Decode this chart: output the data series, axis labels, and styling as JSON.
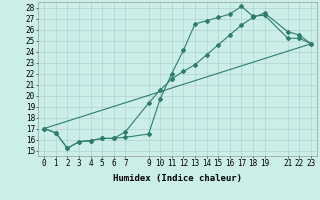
{
  "title": "",
  "xlabel": "Humidex (Indice chaleur)",
  "ylabel": "",
  "bg_color": "#cceee8",
  "line_color": "#2e7d6e",
  "xlim": [
    -0.5,
    23.5
  ],
  "ylim": [
    14.5,
    28.5
  ],
  "xticks": [
    0,
    1,
    2,
    3,
    4,
    5,
    6,
    7,
    9,
    10,
    11,
    12,
    13,
    14,
    15,
    16,
    17,
    18,
    19,
    21,
    22,
    23
  ],
  "yticks": [
    15,
    16,
    17,
    18,
    19,
    20,
    21,
    22,
    23,
    24,
    25,
    26,
    27,
    28
  ],
  "series1_x": [
    0,
    1,
    2,
    3,
    4,
    5,
    6,
    7,
    9,
    10,
    11,
    12,
    13,
    14,
    15,
    16,
    17,
    18,
    19,
    21,
    22,
    23
  ],
  "series1_y": [
    17.0,
    16.6,
    15.2,
    15.8,
    15.9,
    16.1,
    16.1,
    16.2,
    16.5,
    19.7,
    22.0,
    24.1,
    26.5,
    26.8,
    27.1,
    27.4,
    28.1,
    27.2,
    27.3,
    25.2,
    25.2,
    24.7
  ],
  "series2_x": [
    0,
    1,
    2,
    3,
    4,
    5,
    6,
    7,
    9,
    10,
    11,
    12,
    13,
    14,
    15,
    16,
    17,
    18,
    19,
    21,
    22,
    23
  ],
  "series2_y": [
    17.0,
    16.6,
    15.2,
    15.8,
    15.9,
    16.1,
    16.1,
    16.7,
    19.3,
    20.5,
    21.5,
    22.2,
    22.8,
    23.7,
    24.6,
    25.5,
    26.4,
    27.1,
    27.5,
    25.8,
    25.5,
    24.7
  ],
  "series3_x": [
    0,
    23
  ],
  "series3_y": [
    17.0,
    24.7
  ],
  "marker": "D",
  "markersize": 2.0,
  "linewidth": 0.8,
  "xlabel_fontsize": 6.5,
  "tick_fontsize": 5.5,
  "grid_color": "#aacccc",
  "grid_linewidth": 0.4
}
